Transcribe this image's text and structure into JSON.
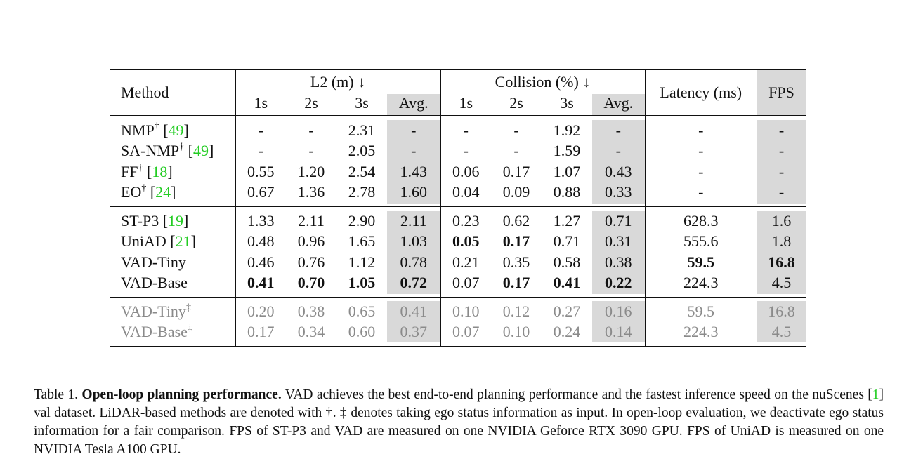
{
  "table": {
    "header": {
      "method": "Method",
      "l2": "L2 (m) ↓",
      "collision": "Collision (%) ↓",
      "latency": "Latency (ms)",
      "fps": "FPS",
      "sub": [
        "1s",
        "2s",
        "3s",
        "Avg.",
        "1s",
        "2s",
        "3s",
        "Avg."
      ]
    },
    "shaded_columns": [
      3,
      7,
      9
    ],
    "groups": [
      {
        "muted": false,
        "rows": [
          {
            "name": "NMP",
            "sup": "†",
            "ref": "[49]",
            "cells": [
              "-",
              "-",
              "2.31",
              "-",
              "-",
              "-",
              "1.92",
              "-",
              "-",
              "-"
            ],
            "bold": []
          },
          {
            "name": "SA-NMP",
            "sup": "†",
            "ref": "[49]",
            "cells": [
              "-",
              "-",
              "2.05",
              "-",
              "-",
              "-",
              "1.59",
              "-",
              "-",
              "-"
            ],
            "bold": []
          },
          {
            "name": "FF",
            "sup": "†",
            "ref": "[18]",
            "cells": [
              "0.55",
              "1.20",
              "2.54",
              "1.43",
              "0.06",
              "0.17",
              "1.07",
              "0.43",
              "-",
              "-"
            ],
            "bold": []
          },
          {
            "name": "EO",
            "sup": "†",
            "ref": "[24]",
            "cells": [
              "0.67",
              "1.36",
              "2.78",
              "1.60",
              "0.04",
              "0.09",
              "0.88",
              "0.33",
              "-",
              "-"
            ],
            "bold": []
          }
        ]
      },
      {
        "muted": false,
        "rows": [
          {
            "name": "ST-P3",
            "ref": "[19]",
            "cells": [
              "1.33",
              "2.11",
              "2.90",
              "2.11",
              "0.23",
              "0.62",
              "1.27",
              "0.71",
              "628.3",
              "1.6"
            ],
            "bold": []
          },
          {
            "name": "UniAD",
            "ref": "[21]",
            "cells": [
              "0.48",
              "0.96",
              "1.65",
              "1.03",
              "0.05",
              "0.17",
              "0.71",
              "0.31",
              "555.6",
              "1.8"
            ],
            "bold": [
              4,
              5
            ]
          },
          {
            "name": "VAD-Tiny",
            "cells": [
              "0.46",
              "0.76",
              "1.12",
              "0.78",
              "0.21",
              "0.35",
              "0.58",
              "0.38",
              "59.5",
              "16.8"
            ],
            "bold": [
              8,
              9
            ]
          },
          {
            "name": "VAD-Base",
            "cells": [
              "0.41",
              "0.70",
              "1.05",
              "0.72",
              "0.07",
              "0.17",
              "0.41",
              "0.22",
              "224.3",
              "4.5"
            ],
            "bold": [
              0,
              1,
              2,
              3,
              5,
              6,
              7
            ]
          }
        ]
      },
      {
        "muted": true,
        "rows": [
          {
            "name": "VAD-Tiny",
            "sup": "‡",
            "cells": [
              "0.20",
              "0.38",
              "0.65",
              "0.41",
              "0.10",
              "0.12",
              "0.27",
              "0.16",
              "59.5",
              "16.8"
            ],
            "bold": []
          },
          {
            "name": "VAD-Base",
            "sup": "‡",
            "cells": [
              "0.17",
              "0.34",
              "0.60",
              "0.37",
              "0.07",
              "0.10",
              "0.24",
              "0.14",
              "224.3",
              "4.5"
            ],
            "bold": []
          }
        ]
      }
    ]
  },
  "caption": {
    "label": "Table 1.",
    "title": "Open-loop planning performance.",
    "text": "VAD achieves the best end-to-end planning performance and the fastest inference speed on the nuScenes [1] val dataset. LiDAR-based methods are denoted with †. ‡ denotes taking ego status information as input. In open-loop evaluation, we deactivate ego status information for a fair comparison. FPS of ST-P3 and VAD are measured on one NVIDIA Geforce RTX 3090 GPU. FPS of UniAD is measured on one NVIDIA Tesla A100 GPU."
  }
}
